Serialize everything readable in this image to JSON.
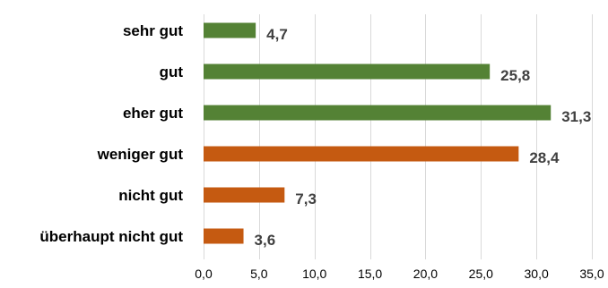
{
  "chart_data": {
    "type": "bar",
    "orientation": "horizontal",
    "categories": [
      "sehr gut",
      "gut",
      "eher gut",
      "weniger gut",
      "nicht gut",
      "überhaupt nicht gut"
    ],
    "values": [
      4.7,
      25.8,
      31.3,
      28.4,
      7.3,
      3.6
    ],
    "value_labels": [
      "4,7",
      "25,8",
      "31,3",
      "28,4",
      "7,3",
      "3,6"
    ],
    "bar_colors": [
      "#548235",
      "#548235",
      "#548235",
      "#c55a11",
      "#c55a11",
      "#c55a11"
    ],
    "xlim": [
      0,
      35
    ],
    "x_ticks": [
      0,
      5,
      10,
      15,
      20,
      25,
      30,
      35
    ],
    "x_tick_labels": [
      "0,0",
      "5,0",
      "10,0",
      "15,0",
      "20,0",
      "25,0",
      "30,0",
      "35,0"
    ],
    "grid": true,
    "title": "",
    "xlabel": "",
    "ylabel": ""
  }
}
